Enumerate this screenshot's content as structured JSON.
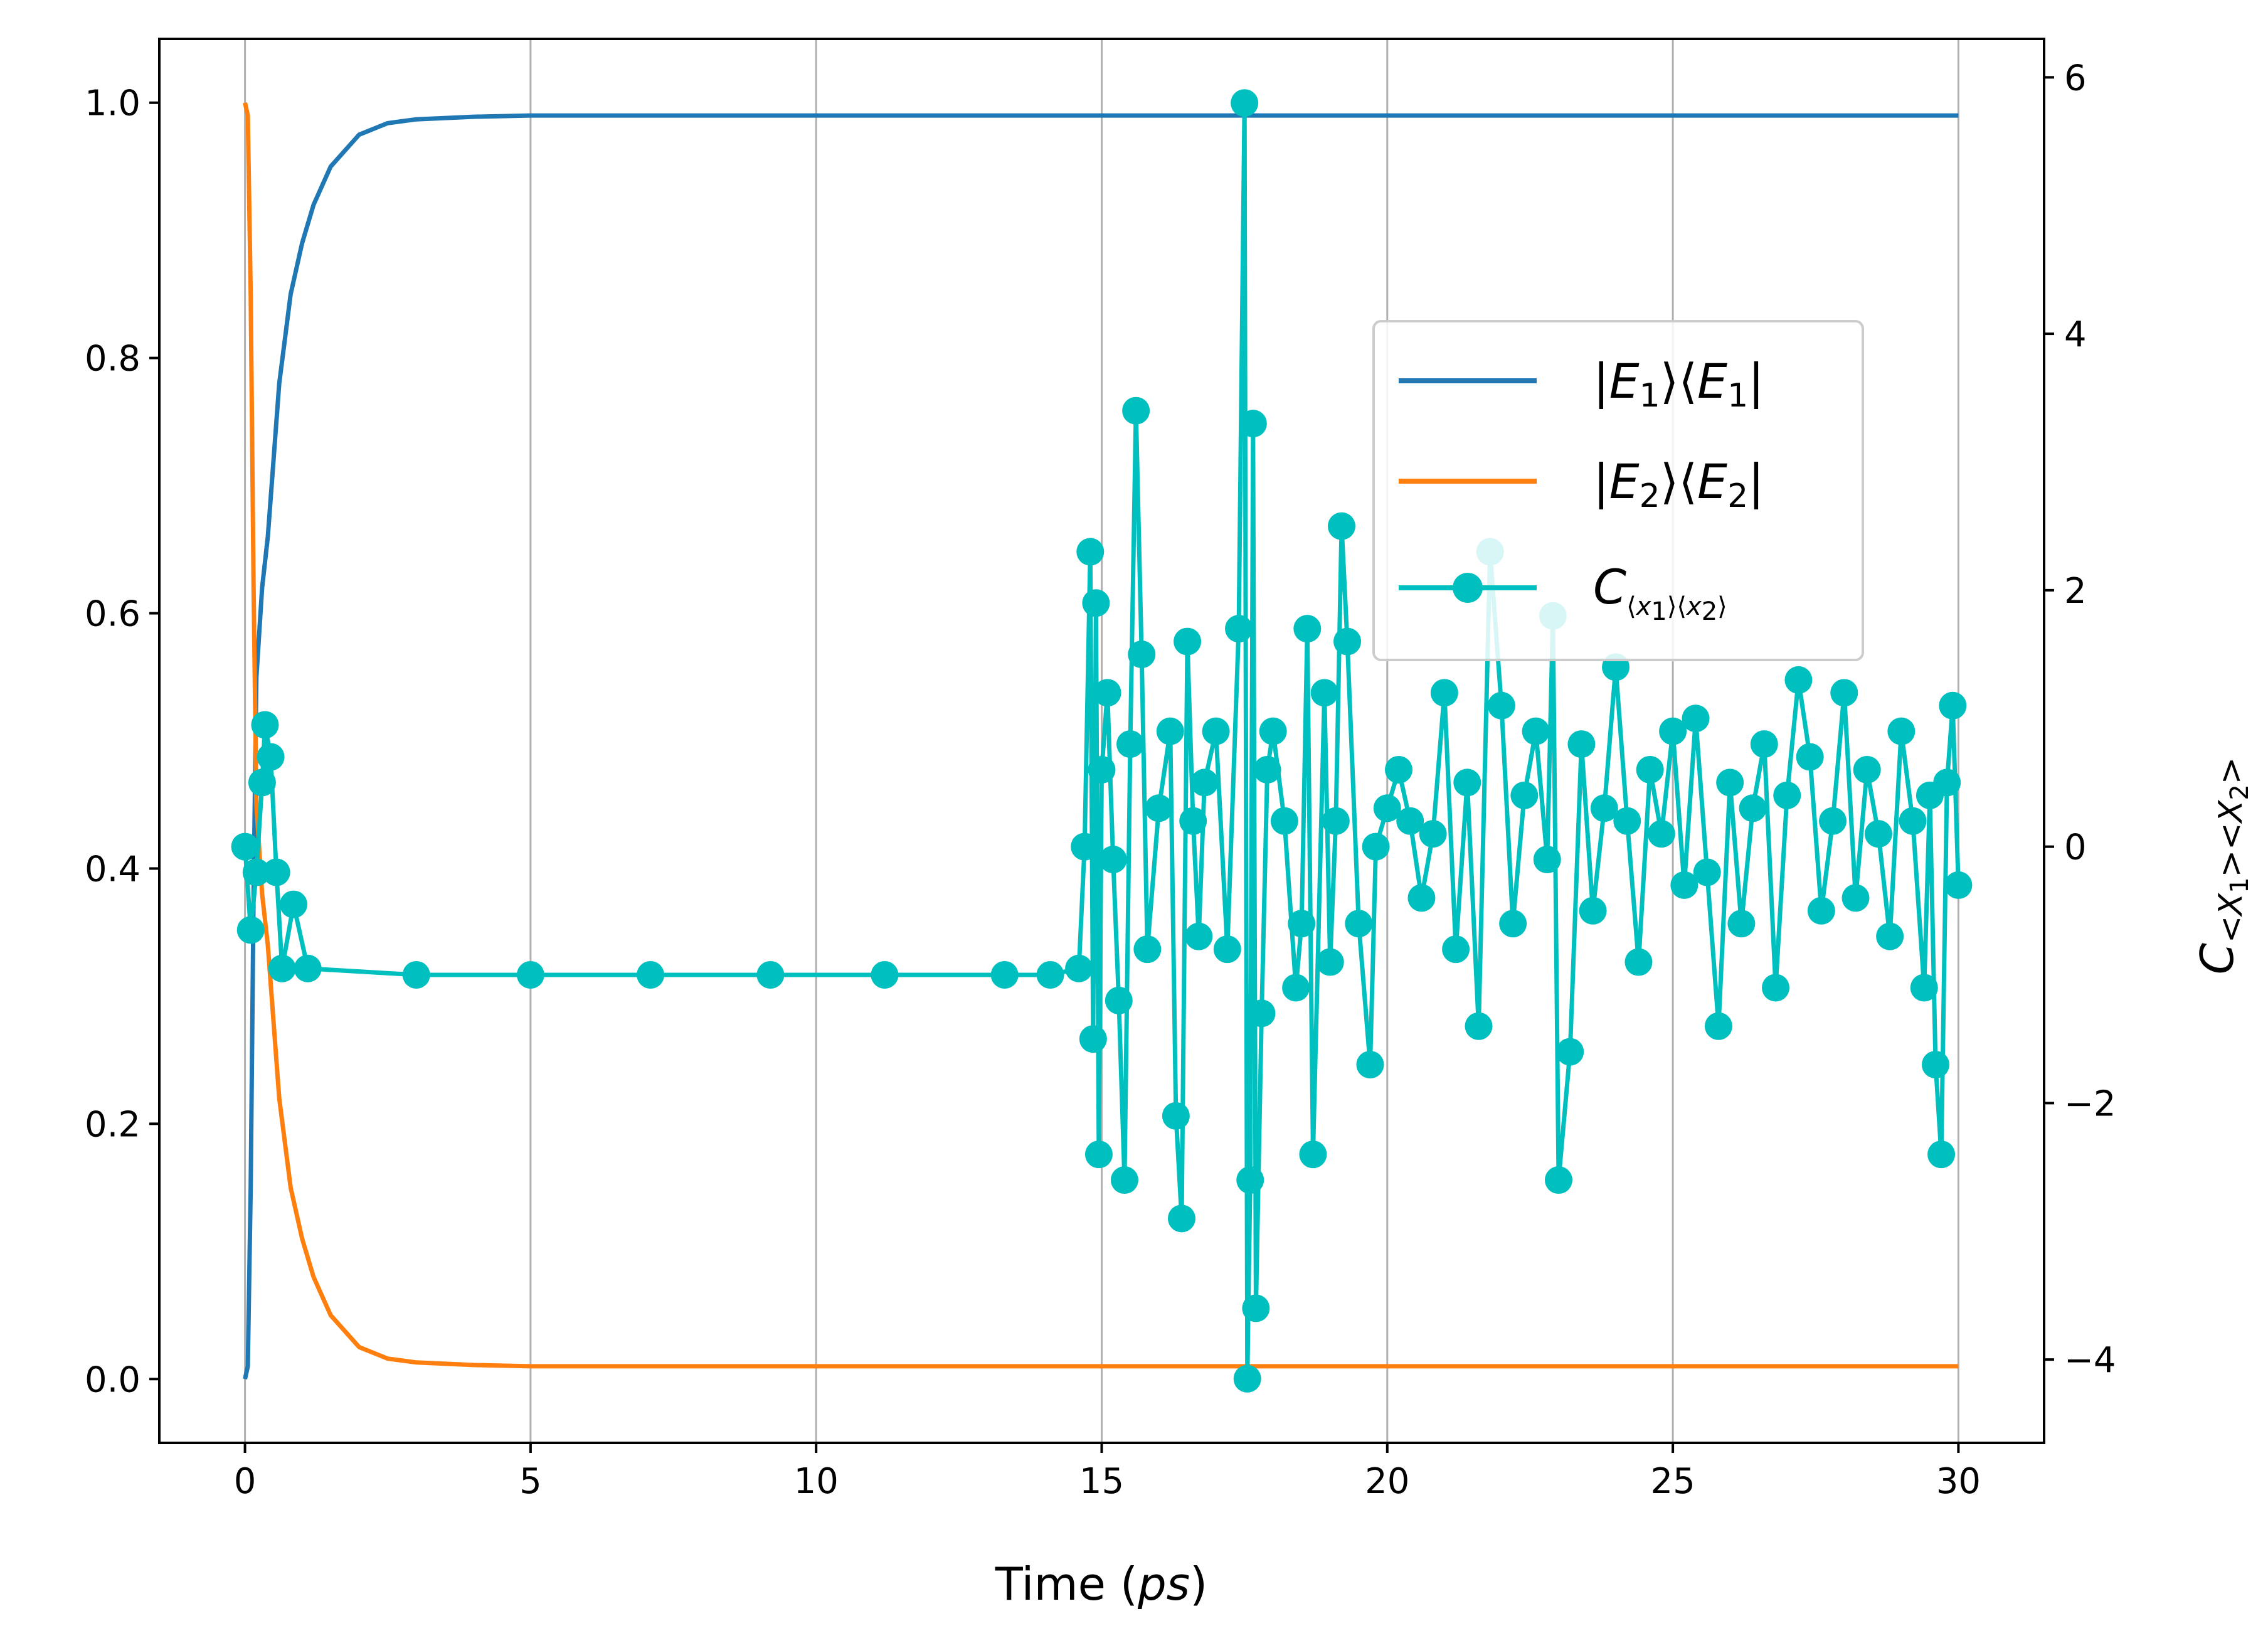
{
  "chart_data": {
    "type": "line",
    "xlabel": "Time (ps)",
    "ylabel_right": "C<X1><X2>",
    "xlim": [
      -1.5,
      31.5
    ],
    "ylim_left": [
      -0.05,
      1.05
    ],
    "ylim_right": [
      -4.65,
      6.3
    ],
    "x_ticks": [
      0,
      5,
      10,
      15,
      20,
      25,
      30
    ],
    "y_left_ticks": [
      0.0,
      0.2,
      0.4,
      0.6,
      0.8,
      1.0
    ],
    "y_right_ticks": [
      -4,
      -2,
      0,
      2,
      4,
      6
    ],
    "grid": "vertical",
    "legend_position": "upper-right",
    "colors": {
      "e1": "#1f77b4",
      "e2": "#ff7f0e",
      "c": "#00bfbf"
    },
    "legend": [
      {
        "key": "e1",
        "label": "|E1⟩⟨E1|"
      },
      {
        "key": "e2",
        "label": "|E2⟩⟨E2|"
      },
      {
        "key": "c",
        "label": "C⟨x1⟩⟨x2⟩"
      }
    ],
    "series": [
      {
        "name": "|E1⟩⟨E1|",
        "axis": "left",
        "x": [
          0,
          0.05,
          0.1,
          0.15,
          0.2,
          0.3,
          0.4,
          0.5,
          0.6,
          0.8,
          1.0,
          1.2,
          1.5,
          2.0,
          2.5,
          3.0,
          4.0,
          5.0,
          10,
          15,
          20,
          25,
          30
        ],
        "y": [
          0.0,
          0.01,
          0.15,
          0.38,
          0.55,
          0.62,
          0.66,
          0.72,
          0.78,
          0.85,
          0.89,
          0.92,
          0.95,
          0.975,
          0.984,
          0.987,
          0.989,
          0.99,
          0.99,
          0.99,
          0.99,
          0.99,
          0.99
        ]
      },
      {
        "name": "|E2⟩⟨E2|",
        "axis": "left",
        "x": [
          0,
          0.05,
          0.1,
          0.15,
          0.2,
          0.3,
          0.4,
          0.5,
          0.6,
          0.8,
          1.0,
          1.2,
          1.5,
          2.0,
          2.5,
          3.0,
          4.0,
          5.0,
          10,
          15,
          20,
          25,
          30
        ],
        "y": [
          1.0,
          0.99,
          0.85,
          0.62,
          0.45,
          0.38,
          0.34,
          0.28,
          0.22,
          0.15,
          0.11,
          0.08,
          0.05,
          0.025,
          0.016,
          0.013,
          0.011,
          0.01,
          0.01,
          0.01,
          0.01,
          0.01,
          0.01
        ]
      },
      {
        "name": "C⟨x1⟩⟨x2⟩",
        "axis": "right",
        "x": [
          0,
          0.1,
          0.2,
          0.3,
          0.35,
          0.45,
          0.55,
          0.65,
          0.85,
          1.1,
          3.0,
          5.0,
          7.1,
          9.2,
          11.2,
          13.3,
          14.1,
          14.6,
          14.7,
          14.8,
          14.85,
          14.9,
          14.95,
          15.0,
          15.1,
          15.2,
          15.3,
          15.4,
          15.5,
          15.6,
          15.7,
          15.8,
          16.0,
          16.2,
          16.3,
          16.4,
          16.5,
          16.6,
          16.7,
          16.8,
          17.0,
          17.2,
          17.4,
          17.5,
          17.55,
          17.6,
          17.65,
          17.7,
          17.8,
          17.9,
          18.0,
          18.2,
          18.4,
          18.5,
          18.6,
          18.7,
          18.9,
          19.0,
          19.1,
          19.2,
          19.3,
          19.5,
          19.7,
          19.8,
          20.0,
          20.2,
          20.4,
          20.6,
          20.8,
          21.0,
          21.2,
          21.4,
          21.6,
          21.8,
          22.0,
          22.2,
          22.4,
          22.6,
          22.8,
          22.9,
          23.0,
          23.2,
          23.4,
          23.6,
          23.8,
          24.0,
          24.2,
          24.4,
          24.6,
          24.8,
          25.0,
          25.2,
          25.4,
          25.6,
          25.8,
          26.0,
          26.2,
          26.4,
          26.6,
          26.8,
          27.0,
          27.2,
          27.4,
          27.6,
          27.8,
          28.0,
          28.2,
          28.4,
          28.6,
          28.8,
          29.0,
          29.2,
          29.4,
          29.5,
          29.6,
          29.7,
          29.8,
          29.9,
          30.0
        ],
        "y": [
          0.0,
          -0.65,
          -0.2,
          0.5,
          0.95,
          0.7,
          -0.2,
          -0.95,
          -0.45,
          -0.95,
          -1.0,
          -1.0,
          -1.0,
          -1.0,
          -1.0,
          -1.0,
          -1.0,
          -0.95,
          0.0,
          2.3,
          -1.5,
          1.9,
          -2.4,
          0.6,
          1.2,
          -0.1,
          -1.2,
          -2.6,
          0.8,
          3.4,
          1.5,
          -0.8,
          0.3,
          0.9,
          -2.1,
          -2.9,
          1.6,
          0.2,
          -0.7,
          0.5,
          0.9,
          -0.8,
          1.7,
          5.8,
          -4.15,
          -2.6,
          3.3,
          -3.6,
          -1.3,
          0.6,
          0.9,
          0.2,
          -1.1,
          -0.6,
          1.7,
          -2.4,
          1.2,
          -0.9,
          0.2,
          2.5,
          1.6,
          -0.6,
          -1.7,
          0.0,
          0.3,
          0.6,
          0.2,
          -0.4,
          0.1,
          1.2,
          -0.8,
          0.5,
          -1.4,
          2.3,
          1.1,
          -0.6,
          0.4,
          0.9,
          -0.1,
          1.8,
          -2.6,
          -1.6,
          0.8,
          -0.5,
          0.3,
          1.4,
          0.2,
          -0.9,
          0.6,
          0.1,
          0.9,
          -0.3,
          1.0,
          -0.2,
          -1.4,
          0.5,
          -0.6,
          0.3,
          0.8,
          -1.1,
          0.4,
          1.3,
          0.7,
          -0.5,
          0.2,
          1.2,
          -0.4,
          0.6,
          0.1,
          -0.7,
          0.9,
          0.2,
          -1.1,
          0.4,
          -1.7,
          -2.4,
          0.5,
          1.1,
          -0.3
        ],
        "markers": true
      }
    ]
  }
}
